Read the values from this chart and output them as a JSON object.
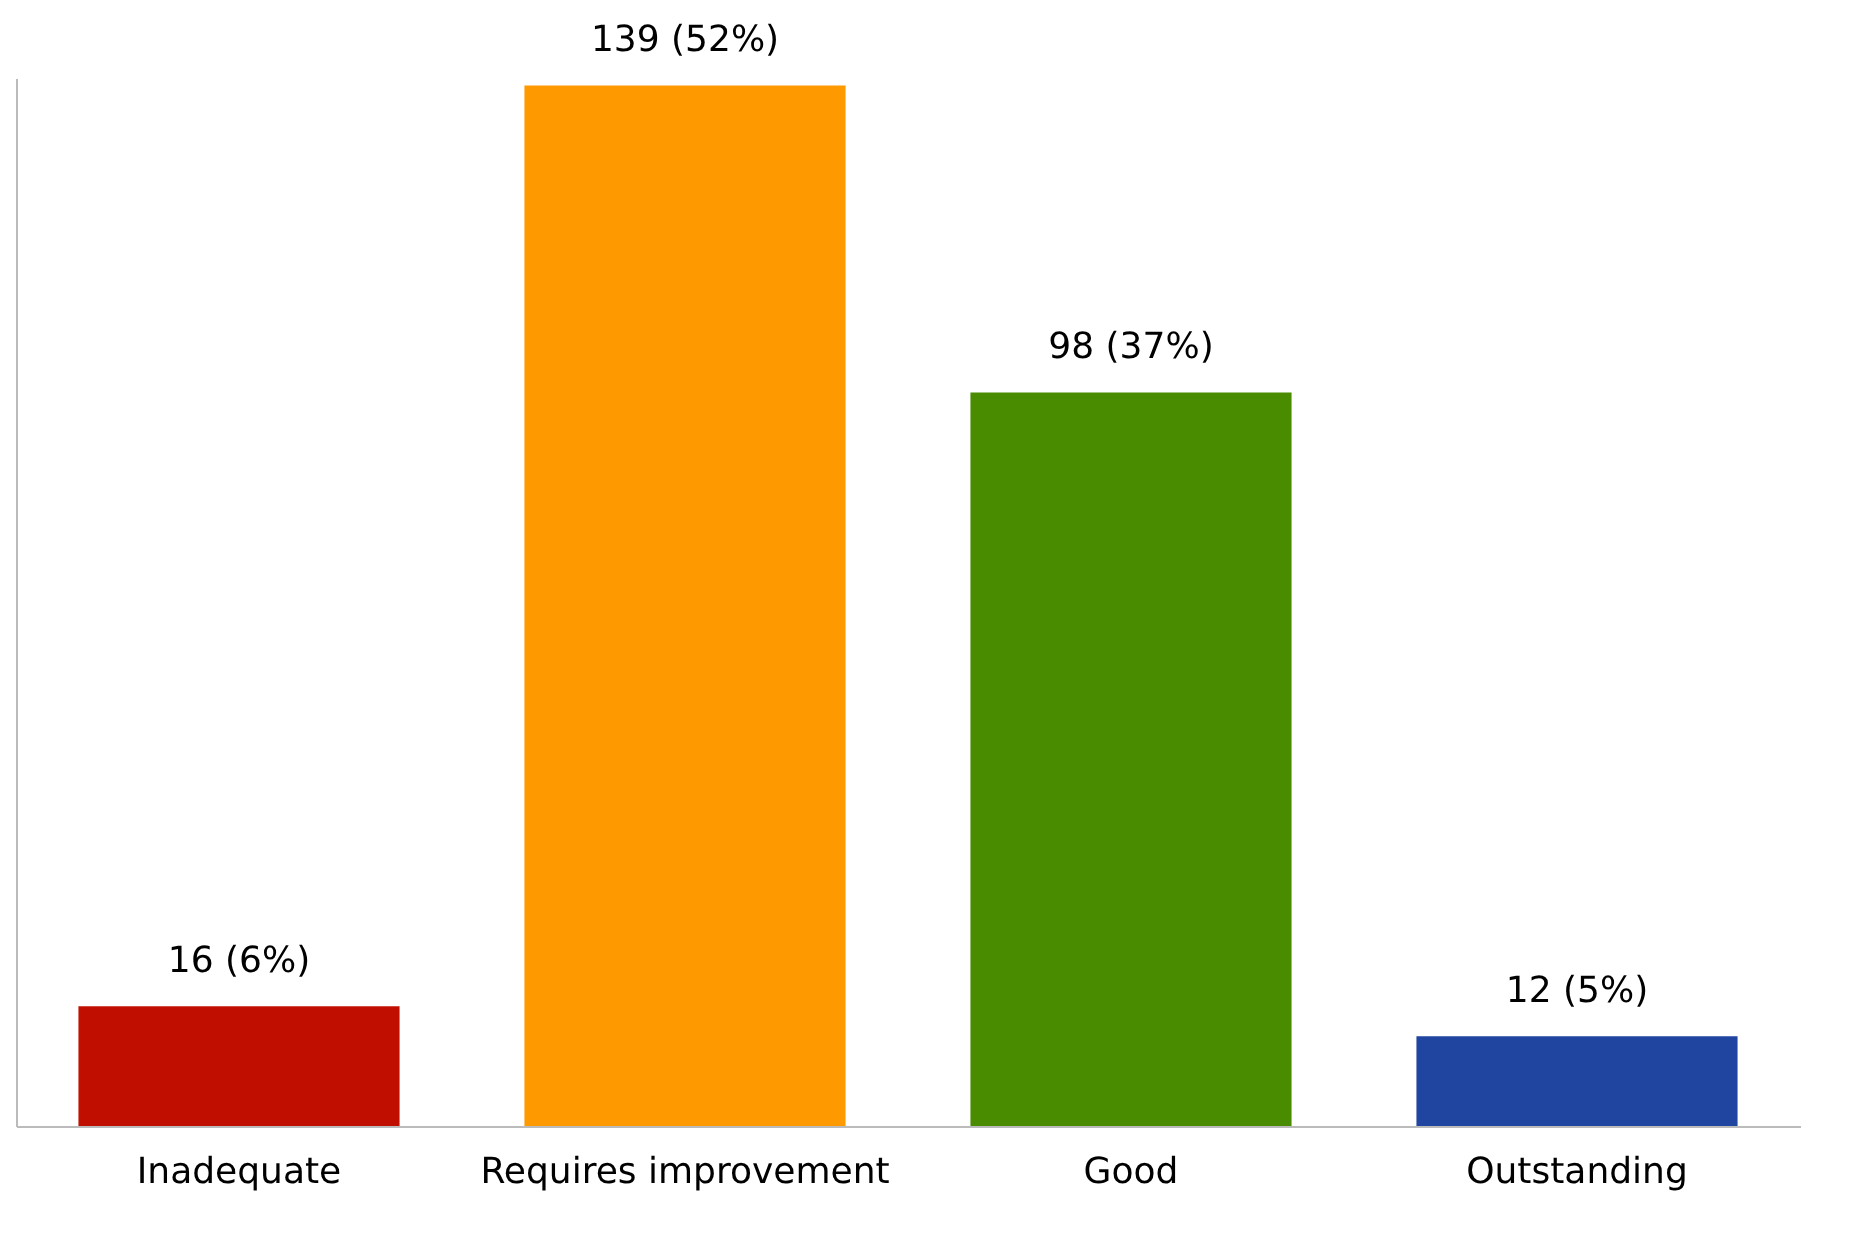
{
  "chart_data": {
    "type": "bar",
    "categories": [
      "Inadequate",
      "Requires improvement",
      "Good",
      "Outstanding"
    ],
    "values": [
      16,
      139,
      98,
      12
    ],
    "colors": [
      "#c00f00",
      "#ff9900",
      "#4a8c00",
      "#1f45a0"
    ],
    "value_labels": [
      "16 (6%)",
      "139 (52%)",
      "98 (37%)",
      "12 (5%)"
    ],
    "tick_labels": "x",
    "grid": false
  }
}
